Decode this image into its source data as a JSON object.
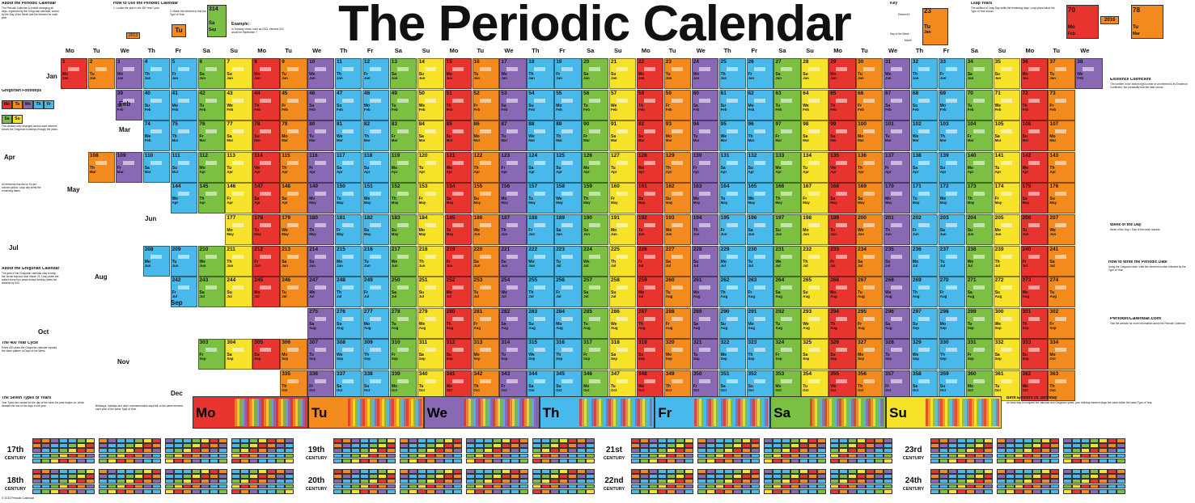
{
  "title": "The Periodic Calendar",
  "colors": {
    "Mo": "#e8342e",
    "Tu": "#f28a1e",
    "We": "#8a69b4",
    "Th": "#49b8ea",
    "Fr": "#49b8ea",
    "Sa": "#7bc043",
    "Su": "#f7e22a"
  },
  "panels": {
    "about_title": "About the Periodic Calendar",
    "about_text": "The Periodic Calendar is a table arranging all days, organized by the Gregorian calendar, sorted by the Day of the Week and the element for each year.",
    "howto_title": "How to Use the Periodic Calendar",
    "howto_step1": "1. Locate the year in the 400 Year Cycle.",
    "howto_step2": "2. Match the element to find the Type of Year.",
    "howto_year": "2013",
    "howto_type": "Tu",
    "example_num": "314",
    "example_day": "Sa",
    "example_mon": "Sep",
    "example_title": "Example:",
    "example_text": "In Tuesday Years, such as 2013, element 314 would be September 7.",
    "key_title": "Key",
    "key_element": "Element #",
    "key_num": "23",
    "key_dow": "Day of the Week",
    "key_month": "Month",
    "key_tu": "Tu",
    "key_jan": "Jan",
    "leap_title": "Leap Years",
    "leap_text": "The addition of Leap Day shifts the remaining days. Leap years follow the Type of Year shown.",
    "leap_year": "2016",
    "leap_n1": "70",
    "leap_n2": "78",
    "leap_d1": "Mo",
    "leap_d2": "Tu",
    "leap_m1": "Feb",
    "leap_m2": "Mar",
    "existence_title": "Existence Coefficient",
    "existence_text": "The number in the bottom right corner of an element is its Existence Coefficient, the probability that the date occurs.",
    "wotd_title": "Week of the Day",
    "wotd_text": "Week of the Day = Day of the week number.",
    "write_title": "How to Write the Periodic Date",
    "write_text": "Using the Gregorian date, write the element number followed by the Type of Year.",
    "url": "PeriodicCalendar.com",
    "url_text": "Visit the website for more information about the Periodic Calendar.",
    "footprint_title": "Gregorian Footsteps",
    "footprint_text": "The rainbow strip arranged across each element shows the Gregorian footsteps through the years.",
    "sufoot_text": "All elements that fall on Su are colored yellow. Leap day shifts the remaining dates.",
    "aboutg_title": "About the Gregorian Calendar",
    "aboutg_text": "The goal of the Gregorian calendar was to keep the vernal equinox near March 21. Leap years are added every four years except century years not divisible by 400.",
    "cycle_title": "The 400 Year Cycle",
    "cycle_text": "Every 400 years the Gregorian calendar repeats the same pattern of Days of the Week.",
    "seven_title": "The Seven Types of Years",
    "seven_text": "Year Types are named for the day of the week the year begins on, which dictates the rest of the days in the year.",
    "mid_text": "Birthdays, holidays and other commemorative days fall on the same element each year of the same Type of Year.",
    "birth_title": "Birth Element vs. Birthday",
    "birth_text": "An easy way to compare the calendar and Gregorian years: your birthday element stays the same within the same Type of Year."
  },
  "columns": [
    "Mo",
    "Tu",
    "We",
    "Th",
    "Fr",
    "Sa",
    "Su"
  ],
  "months": [
    "Jan",
    "Feb",
    "Mar",
    "Apr",
    "May",
    "Jun",
    "Jul",
    "Aug",
    "Sep",
    "Oct",
    "Nov",
    "Dec"
  ],
  "diag_labels": [
    "Su",
    "Su",
    "We",
    "Th",
    "Fr",
    "Sa",
    "Su"
  ],
  "bar": [
    "Mo",
    "Tu",
    "We",
    "Th",
    "Fr",
    "Sa",
    "Su"
  ],
  "centuries": [
    {
      "top": "17th",
      "bot": "CENTURY"
    },
    {
      "top": "18th",
      "bot": "CENTURY"
    },
    {
      "top": "19th",
      "bot": "CENTURY"
    },
    {
      "top": "20th",
      "bot": "CENTURY"
    },
    {
      "top": "21st",
      "bot": "CENTURY"
    },
    {
      "top": "22nd",
      "bot": "CENTURY"
    },
    {
      "top": "23rd",
      "bot": "CENTURY"
    },
    {
      "top": "24th",
      "bot": "CENTURY"
    }
  ],
  "copyright": "© 2013 Periodic Calendar"
}
